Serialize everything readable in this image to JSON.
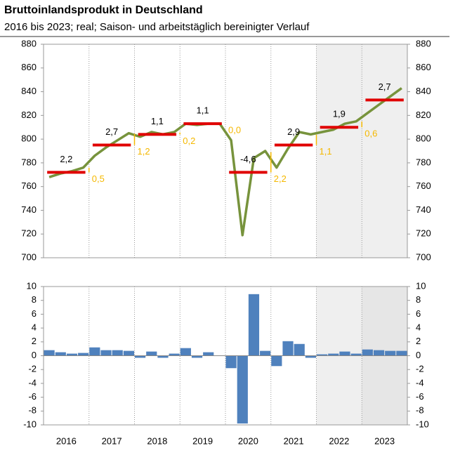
{
  "chart_data": [
    {
      "type": "line",
      "title": "Bruttoinlandsprodukt in Deutschland",
      "subtitle": "2016 bis 2023; real; Saison- und arbeitstäglich bereinigter Verlauf",
      "years": [
        "2016",
        "2017",
        "2018",
        "2019",
        "2020",
        "2021",
        "2022",
        "2023"
      ],
      "color": "#77933c",
      "values": [
        768,
        771,
        773,
        776,
        786,
        793,
        799,
        805,
        802,
        806,
        804,
        806,
        813,
        812,
        813,
        813,
        799,
        719,
        784,
        790,
        776,
        792,
        806,
        804,
        806,
        808,
        813,
        815,
        822,
        829,
        836,
        843
      ],
      "annual_averages": {
        "color": "#e00000",
        "values": [
          772,
          795,
          804,
          813,
          772,
          795,
          810,
          833
        ]
      },
      "growth": {
        "values": [
          2.2,
          2.7,
          1.1,
          1.1,
          -4.6,
          2.9,
          1.9,
          2.7
        ],
        "value_labels": [
          "2,2",
          "2,7",
          "1,1",
          "1,1",
          "-4,6",
          "2,9",
          "1,9",
          "2,7"
        ]
      },
      "carryover": {
        "color": "#f5b800",
        "values": [
          0.5,
          1.2,
          0.2,
          0.0,
          2.2,
          1.1,
          0.6
        ],
        "value_labels": [
          "0,5",
          "1,2",
          "0,2",
          "0,0",
          "2,2",
          "1,1",
          "0,6"
        ]
      },
      "ylim": [
        700,
        880
      ],
      "yticks": [
        700,
        720,
        740,
        760,
        780,
        800,
        820,
        840,
        860,
        880
      ]
    },
    {
      "type": "bar",
      "color": "#4f81bd",
      "values": [
        0.8,
        0.5,
        0.3,
        0.4,
        1.2,
        0.8,
        0.8,
        0.7,
        -0.3,
        0.6,
        -0.3,
        0.3,
        1.1,
        -0.3,
        0.5,
        0.0,
        -1.8,
        -9.8,
        8.9,
        0.7,
        -1.5,
        2.1,
        1.7,
        -0.3,
        0.2,
        0.3,
        0.6,
        0.3,
        0.9,
        0.8,
        0.7,
        0.7
      ],
      "ylim": [
        -10,
        10
      ],
      "yticks": [
        -10,
        -8,
        -6,
        -4,
        -2,
        0,
        2,
        4,
        6,
        8,
        10
      ]
    }
  ]
}
